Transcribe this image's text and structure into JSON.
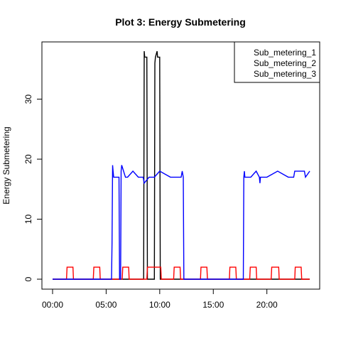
{
  "chart_data": {
    "type": "line",
    "title": "Plot 3: Energy Submetering",
    "xlabel": "",
    "ylabel": "Energy Submetering",
    "xlim": [
      0,
      24
    ],
    "ylim": [
      0,
      38
    ],
    "x_ticks": [
      {
        "value": 0,
        "label": "00:00"
      },
      {
        "value": 5,
        "label": "05:00"
      },
      {
        "value": 10,
        "label": "10:00"
      },
      {
        "value": 15,
        "label": "15:00"
      },
      {
        "value": 20,
        "label": "20:00"
      }
    ],
    "y_ticks": [
      0,
      10,
      20,
      30
    ],
    "grid": false,
    "legend": {
      "position": "top-right",
      "entries": [
        "Sub_metering_1",
        "Sub_metering_2",
        "Sub_metering_3"
      ]
    },
    "series": [
      {
        "name": "Sub_metering_1",
        "color": "#000000",
        "x": [
          0,
          8.5,
          8.55,
          8.6,
          8.7,
          8.8,
          8.85,
          9.5,
          9.55,
          9.6,
          9.75,
          9.8,
          9.85,
          10.0,
          10.05,
          24
        ],
        "y": [
          0,
          0,
          38,
          37,
          37,
          37,
          0,
          0,
          36,
          37,
          38,
          37,
          37,
          37,
          0,
          0
        ]
      },
      {
        "name": "Sub_metering_2",
        "color": "#ff0000",
        "x": [
          0,
          1.3,
          1.35,
          1.9,
          1.95,
          3.8,
          3.85,
          4.4,
          4.45,
          6.5,
          6.55,
          7.1,
          7.15,
          8.8,
          8.85,
          10.1,
          10.15,
          11.3,
          11.35,
          11.9,
          11.95,
          13.8,
          13.85,
          14.4,
          14.45,
          16.5,
          16.55,
          17.1,
          17.15,
          18.4,
          18.45,
          19.0,
          19.05,
          20.4,
          20.45,
          21.1,
          21.15,
          22.6,
          22.65,
          23.2,
          23.25,
          24
        ],
        "y": [
          0,
          0,
          2,
          2,
          0,
          0,
          2,
          2,
          0,
          0,
          2,
          2,
          0,
          0,
          2,
          2,
          0,
          0,
          2,
          2,
          0,
          0,
          2,
          2,
          0,
          0,
          2,
          2,
          0,
          0,
          2,
          2,
          0,
          0,
          2,
          2,
          0,
          0,
          2,
          2,
          0,
          0
        ]
      },
      {
        "name": "Sub_metering_3",
        "color": "#0000ff",
        "x": [
          0,
          5.5,
          5.55,
          5.6,
          5.65,
          5.7,
          6.2,
          6.25,
          6.35,
          6.4,
          6.45,
          6.8,
          7.0,
          7.5,
          8.0,
          8.45,
          8.55,
          9.0,
          9.5,
          10.0,
          11.0,
          12.0,
          12.1,
          12.2,
          12.25,
          17.8,
          17.85,
          17.9,
          17.95,
          18.5,
          19.0,
          19.3,
          19.35,
          19.4,
          19.5,
          20.0,
          21.0,
          22.0,
          22.5,
          22.6,
          23.0,
          23.5,
          23.6,
          24.0
        ],
        "y": [
          0,
          0,
          6,
          19,
          18,
          17,
          17,
          0,
          0,
          18,
          19,
          17,
          17,
          18,
          17,
          17,
          16,
          17,
          17,
          18,
          17,
          17,
          18,
          17,
          0,
          0,
          17,
          18,
          17,
          17,
          18,
          17,
          16,
          17,
          17,
          17,
          18,
          17,
          17,
          18,
          18,
          18,
          17,
          18
        ]
      }
    ]
  }
}
